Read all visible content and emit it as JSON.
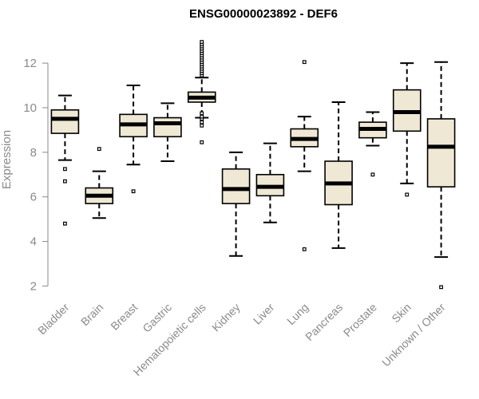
{
  "chart_data": {
    "type": "box",
    "title": "ENSG00000023892 - DEF6",
    "ylabel": "Expression",
    "ylim": [
      1.8,
      13.4
    ],
    "yticks": [
      2,
      4,
      6,
      8,
      10,
      12
    ],
    "grid": false,
    "colors": {
      "box_fill": "#efe8d4",
      "stroke": "#000000",
      "text": "#8a8a8a"
    },
    "categories": [
      "Bladder",
      "Brain",
      "Breast",
      "Gastric",
      "Hematopoietic cells",
      "Kidney",
      "Liver",
      "Lung",
      "Pancreas",
      "Prostate",
      "Skin",
      "Unknown / Other"
    ],
    "boxes": [
      {
        "q1": 8.85,
        "median": 9.5,
        "q3": 9.9,
        "wlo": 7.65,
        "whi": 10.55,
        "outliers": [
          7.25,
          6.7,
          4.8
        ]
      },
      {
        "q1": 5.7,
        "median": 6.05,
        "q3": 6.4,
        "wlo": 5.05,
        "whi": 7.15,
        "outliers": [
          8.15
        ]
      },
      {
        "q1": 8.7,
        "median": 9.25,
        "q3": 9.7,
        "wlo": 7.45,
        "whi": 11.0,
        "outliers": [
          6.25
        ]
      },
      {
        "q1": 8.7,
        "median": 9.3,
        "q3": 9.55,
        "wlo": 7.6,
        "whi": 10.2,
        "outliers": []
      },
      {
        "q1": 10.25,
        "median": 10.45,
        "q3": 10.7,
        "wlo": 9.55,
        "whi": 11.35,
        "outliers": [
          9.2,
          9.35,
          9.5,
          9.6,
          9.75,
          11.45,
          11.55,
          11.65,
          11.75,
          11.85,
          11.95,
          12.05,
          12.15,
          12.25,
          12.35,
          12.45,
          12.55,
          12.65,
          12.75,
          12.85,
          12.95,
          8.45
        ]
      },
      {
        "q1": 5.7,
        "median": 6.35,
        "q3": 7.25,
        "wlo": 3.35,
        "whi": 8.0,
        "outliers": []
      },
      {
        "q1": 6.05,
        "median": 6.45,
        "q3": 7.0,
        "wlo": 4.85,
        "whi": 8.4,
        "outliers": []
      },
      {
        "q1": 8.25,
        "median": 8.6,
        "q3": 9.05,
        "wlo": 7.15,
        "whi": 9.6,
        "outliers": [
          12.05,
          3.65
        ]
      },
      {
        "q1": 5.65,
        "median": 6.6,
        "q3": 7.6,
        "wlo": 3.7,
        "whi": 10.25,
        "outliers": []
      },
      {
        "q1": 8.65,
        "median": 9.05,
        "q3": 9.35,
        "wlo": 8.3,
        "whi": 9.8,
        "outliers": [
          7.0
        ]
      },
      {
        "q1": 8.95,
        "median": 9.8,
        "q3": 10.8,
        "wlo": 6.6,
        "whi": 12.0,
        "outliers": [
          6.1
        ]
      },
      {
        "q1": 6.45,
        "median": 8.25,
        "q3": 9.5,
        "wlo": 3.3,
        "whi": 12.05,
        "outliers": [
          1.95
        ]
      }
    ]
  }
}
